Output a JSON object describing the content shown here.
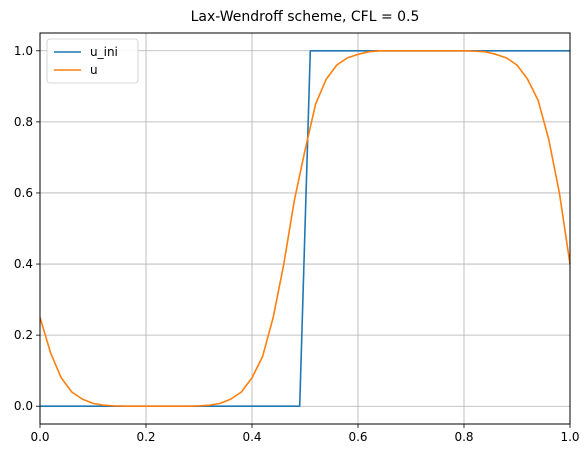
{
  "chart_data": {
    "type": "line",
    "title": "Lax-Wendroff scheme, CFL = 0.5",
    "xlabel": "",
    "ylabel": "",
    "xlim": [
      0.0,
      1.0
    ],
    "ylim": [
      -0.05,
      1.05
    ],
    "xticks": [
      0.0,
      0.2,
      0.4,
      0.6,
      0.8,
      1.0
    ],
    "xtick_labels": [
      "0.0",
      "0.2",
      "0.4",
      "0.6",
      "0.8",
      "1.0"
    ],
    "yticks": [
      0.0,
      0.2,
      0.4,
      0.6,
      0.8,
      1.0
    ],
    "ytick_labels": [
      "0.0",
      "0.2",
      "0.4",
      "0.6",
      "0.8",
      "1.0"
    ],
    "grid": true,
    "legend_position": "upper-left",
    "series": [
      {
        "name": "u_ini",
        "color": "#1f77b4",
        "x": [
          0.0,
          0.49,
          0.51,
          1.0
        ],
        "y": [
          0.0,
          0.0,
          1.0,
          1.0
        ]
      },
      {
        "name": "u",
        "color": "#ff7f0e",
        "x": [
          0.0,
          0.02,
          0.04,
          0.06,
          0.08,
          0.1,
          0.12,
          0.14,
          0.16,
          0.18,
          0.2,
          0.22,
          0.24,
          0.26,
          0.28,
          0.3,
          0.32,
          0.34,
          0.36,
          0.38,
          0.4,
          0.42,
          0.44,
          0.46,
          0.48,
          0.5,
          0.52,
          0.54,
          0.56,
          0.58,
          0.6,
          0.62,
          0.64,
          0.66,
          0.68,
          0.7,
          0.72,
          0.74,
          0.76,
          0.78,
          0.8,
          0.82,
          0.84,
          0.86,
          0.88,
          0.9,
          0.92,
          0.94,
          0.96,
          0.98,
          1.0
        ],
        "y": [
          0.25,
          0.15,
          0.08,
          0.04,
          0.02,
          0.008,
          0.003,
          0.001,
          0.0,
          0.0,
          0.0,
          0.0,
          0.0,
          0.0,
          0.0,
          0.001,
          0.003,
          0.008,
          0.02,
          0.04,
          0.08,
          0.14,
          0.25,
          0.4,
          0.58,
          0.72,
          0.85,
          0.92,
          0.96,
          0.98,
          0.99,
          0.997,
          1.0,
          1.0,
          1.0,
          1.0,
          1.0,
          1.0,
          1.0,
          1.0,
          1.0,
          0.999,
          0.997,
          0.99,
          0.98,
          0.96,
          0.92,
          0.86,
          0.75,
          0.6,
          0.4
        ]
      }
    ]
  }
}
